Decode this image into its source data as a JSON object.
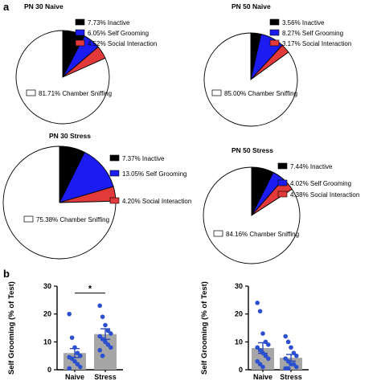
{
  "colors": {
    "inactive": "#000000",
    "self_grooming": "#1c1cf2",
    "social_interaction": "#e23a3a",
    "chamber_sniffing": "#ffffff",
    "dot": "#2a4fcf",
    "bar": "#a6a6a6"
  },
  "panel_a_label": "a",
  "panel_b_label": "b",
  "chart_data": [
    {
      "type": "pie",
      "title": "PN 30 Naive",
      "slices": [
        {
          "name": "Inactive",
          "value": 7.73,
          "label": "7.73%  Inactive",
          "color": "#000000"
        },
        {
          "name": "Self Grooming",
          "value": 6.05,
          "label": "6.05%  Self Grooming",
          "color": "#1c1cf2"
        },
        {
          "name": "Social Interaction",
          "value": 4.52,
          "label": "4.52%  Social Interaction",
          "color": "#e23a3a"
        },
        {
          "name": "Chamber Sniffing",
          "value": 81.71,
          "label": "81.71%  Chamber Sniffing",
          "color": "#ffffff"
        }
      ]
    },
    {
      "type": "pie",
      "title": "PN 50 Naive",
      "slices": [
        {
          "name": "Inactive",
          "value": 3.56,
          "label": "3.56%  Inactive",
          "color": "#000000"
        },
        {
          "name": "Self Grooming",
          "value": 8.27,
          "label": "8.27%  Self Grooming",
          "color": "#1c1cf2"
        },
        {
          "name": "Social Interaction",
          "value": 3.17,
          "label": "3.17%  Social Interaction",
          "color": "#e23a3a"
        },
        {
          "name": "Chamber Sniffing",
          "value": 85.0,
          "label": "85.00%  Chamber Sniffing",
          "color": "#ffffff"
        }
      ]
    },
    {
      "type": "pie",
      "title": "PN 30 Stress",
      "slices": [
        {
          "name": "Inactive",
          "value": 7.37,
          "label": "7.37%  Inactive",
          "color": "#000000"
        },
        {
          "name": "Self Grooming",
          "value": 13.05,
          "label": "13.05%  Self Grooming",
          "color": "#1c1cf2"
        },
        {
          "name": "Social Interaction",
          "value": 4.2,
          "label": "4.20%  Social Interaction",
          "color": "#e23a3a"
        },
        {
          "name": "Chamber Sniffing",
          "value": 75.38,
          "label": "75.38%  Chamber Sniffing",
          "color": "#ffffff"
        }
      ]
    },
    {
      "type": "pie",
      "title": "PN 50 Stress",
      "slices": [
        {
          "name": "Inactive",
          "value": 7.44,
          "label": "7.44%  Inactive",
          "color": "#000000"
        },
        {
          "name": "Self Grooming",
          "value": 4.02,
          "label": "4.02%  Self Grooming",
          "color": "#1c1cf2"
        },
        {
          "name": "Social Interaction",
          "value": 4.38,
          "label": "4.38%  Social Interaction",
          "color": "#e23a3a"
        },
        {
          "name": "Chamber Sniffing",
          "value": 84.16,
          "label": "84.16%  Chamber Sniffing",
          "color": "#ffffff"
        }
      ]
    },
    {
      "type": "bar",
      "categories": [
        "Naive",
        "Stress"
      ],
      "values": [
        6,
        12.8
      ],
      "errors": [
        1.6,
        1.9
      ],
      "points": [
        [
          20,
          11.5,
          8,
          6,
          5,
          4.5,
          4,
          3,
          2,
          1,
          0.5
        ],
        [
          23,
          19,
          16,
          14,
          13,
          12,
          11,
          10,
          9,
          8,
          7,
          5
        ]
      ],
      "ylabel": "Self Grooming (% of Test)",
      "ylim": [
        0,
        30
      ],
      "yticks": [
        0,
        10,
        20,
        30
      ],
      "significance": "*"
    },
    {
      "type": "bar",
      "categories": [
        "Naive",
        "Stress"
      ],
      "values": [
        7.8,
        4.3
      ],
      "errors": [
        1.9,
        1.2
      ],
      "points": [
        [
          24,
          21,
          13,
          10,
          9,
          8,
          7,
          6,
          5,
          4,
          3,
          2,
          1
        ],
        [
          12,
          10,
          8,
          6,
          5,
          4,
          3,
          2,
          2,
          1,
          0.5,
          0.5
        ]
      ],
      "ylabel": "Self Grooming (% of Test)",
      "ylim": [
        0,
        30
      ],
      "yticks": [
        0,
        10,
        20,
        30
      ]
    }
  ]
}
